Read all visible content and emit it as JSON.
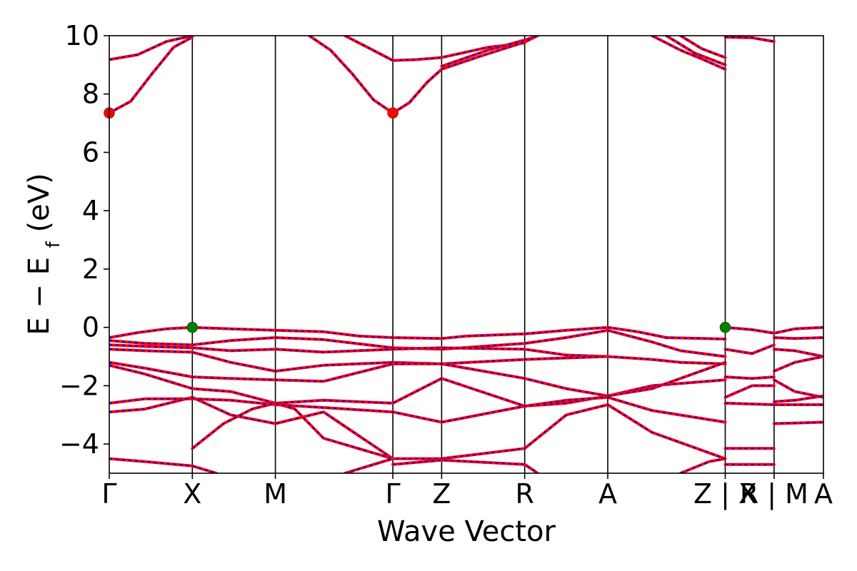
{
  "chart_data": {
    "type": "line",
    "title": "",
    "xlabel": "Wave Vector",
    "ylabel": "E − E_f (eV)",
    "ylim": [
      -5,
      10
    ],
    "yticks": [
      -4,
      -2,
      0,
      2,
      4,
      6,
      8,
      10
    ],
    "ytick_labels": [
      "−4",
      "−2",
      "0",
      "2",
      "4",
      "6",
      "8",
      "10"
    ],
    "xlim": [
      0,
      1
    ],
    "kpoints": [
      {
        "label": "Γ",
        "x": 0.0
      },
      {
        "label": "X",
        "x": 0.1163
      },
      {
        "label": "M",
        "x": 0.2326
      },
      {
        "label": "Γ",
        "x": 0.3971
      },
      {
        "label": "Z",
        "x": 0.4654
      },
      {
        "label": "R",
        "x": 0.5817
      },
      {
        "label": "A",
        "x": 0.698
      },
      {
        "label": "Z | X",
        "x": 0.8625
      },
      {
        "label": "R | M",
        "x": 0.9309
      },
      {
        "label": "A",
        "x": 1.0
      }
    ],
    "line_colors": {
      "spin_up": "#ff0000",
      "spin_down": "#0000ff"
    },
    "markers": {
      "cbm": {
        "color": "#ff0000",
        "points": [
          [
            0.0,
            7.35
          ],
          [
            0.3971,
            7.35
          ]
        ]
      },
      "vbm": {
        "color": "#008000",
        "points": [
          [
            0.1163,
            0.0
          ],
          [
            0.8625,
            0.0
          ]
        ]
      }
    },
    "series": [
      {
        "x": [
          0,
          0.03,
          0.06,
          0.09,
          0.1163
        ],
        "y": [
          7.35,
          7.75,
          8.7,
          9.6,
          9.95
        ]
      },
      {
        "x": [
          0,
          0.04,
          0.08,
          0.1163
        ],
        "y": [
          9.18,
          9.35,
          9.8,
          10.0
        ]
      },
      {
        "x": [
          0.28,
          0.31,
          0.34,
          0.37,
          0.3971,
          0.42,
          0.445,
          0.4654
        ],
        "y": [
          10.0,
          9.5,
          8.7,
          7.8,
          7.35,
          7.7,
          8.4,
          8.85
        ]
      },
      {
        "x": [
          0.3971,
          0.43,
          0.4654,
          0.53,
          0.5817
        ],
        "y": [
          9.15,
          9.18,
          9.25,
          9.6,
          9.75
        ]
      },
      {
        "x": [
          0.33,
          0.3971
        ],
        "y": [
          10.0,
          9.15
        ]
      },
      {
        "x": [
          0.4654,
          0.52,
          0.5817,
          0.6
        ],
        "y": [
          8.85,
          9.3,
          9.78,
          10.0
        ]
      },
      {
        "x": [
          0.4654,
          0.53,
          0.5817,
          0.6
        ],
        "y": [
          8.95,
          9.5,
          9.85,
          10.0
        ]
      },
      {
        "x": [
          0.76,
          0.8,
          0.83,
          0.8625
        ],
        "y": [
          10.0,
          9.5,
          9.2,
          8.85
        ]
      },
      {
        "x": [
          0.78,
          0.82,
          0.8625
        ],
        "y": [
          10.0,
          9.4,
          9.0
        ]
      },
      {
        "x": [
          0.8,
          0.83,
          0.8625
        ],
        "y": [
          10.0,
          9.55,
          9.25
        ]
      },
      {
        "x": [
          0.8625,
          0.9,
          0.9309
        ],
        "y": [
          9.95,
          9.93,
          9.8
        ]
      },
      {
        "x": [
          0,
          0.04,
          0.08,
          0.1163,
          0.17,
          0.2326
        ],
        "y": [
          -0.35,
          -0.18,
          -0.05,
          0.0,
          -0.05,
          -0.1
        ]
      },
      {
        "x": [
          0.2326,
          0.3,
          0.35,
          0.3971,
          0.4654,
          0.5,
          0.5817,
          0.64,
          0.698
        ],
        "y": [
          -0.1,
          -0.15,
          -0.3,
          -0.35,
          -0.38,
          -0.3,
          -0.22,
          -0.1,
          0.0
        ]
      },
      {
        "x": [
          0.698,
          0.74,
          0.78,
          0.8625
        ],
        "y": [
          0.0,
          -0.15,
          -0.35,
          -0.4
        ]
      },
      {
        "x": [
          0.8625,
          0.9,
          0.9309,
          0.96,
          1.0
        ],
        "y": [
          0.0,
          -0.08,
          -0.2,
          -0.05,
          0.0
        ]
      },
      {
        "x": [
          0,
          0.05,
          0.1163,
          0.17,
          0.2326
        ],
        "y": [
          -0.45,
          -0.55,
          -0.6,
          -0.45,
          -0.35
        ]
      },
      {
        "x": [
          0.2326,
          0.3,
          0.3971,
          0.4654,
          0.5817,
          0.64,
          0.698
        ],
        "y": [
          -0.35,
          -0.42,
          -0.7,
          -0.75,
          -0.55,
          -0.35,
          -0.1
        ]
      },
      {
        "x": [
          0.698,
          0.76,
          0.8,
          0.8625
        ],
        "y": [
          -0.1,
          -0.5,
          -0.8,
          -1.0
        ]
      },
      {
        "x": [
          0,
          0.05,
          0.1163,
          0.17,
          0.2326,
          0.3,
          0.3971,
          0.4654,
          0.5817,
          0.64,
          0.698
        ],
        "y": [
          -0.6,
          -0.65,
          -0.7,
          -0.8,
          -0.75,
          -0.85,
          -0.75,
          -0.7,
          -0.75,
          -0.95,
          -1.0
        ]
      },
      {
        "x": [
          0.698,
          0.76,
          0.8,
          0.8625
        ],
        "y": [
          -1.0,
          -1.1,
          -1.2,
          -1.25
        ]
      },
      {
        "x": [
          0,
          0.05,
          0.1163,
          0.17,
          0.2326,
          0.3,
          0.3971,
          0.4654,
          0.5817,
          0.698
        ],
        "y": [
          -0.75,
          -0.8,
          -0.85,
          -1.2,
          -1.5,
          -1.3,
          -1.2,
          -1.25,
          -1.1,
          -1.0
        ]
      },
      {
        "x": [
          0,
          0.05,
          0.1163,
          0.17,
          0.2326,
          0.3,
          0.3971,
          0.4654,
          0.5817,
          0.64,
          0.698,
          0.76,
          0.8625
        ],
        "y": [
          -1.2,
          -1.4,
          -1.7,
          -1.75,
          -1.8,
          -1.85,
          -1.25,
          -1.25,
          -1.75,
          -2.1,
          -2.35,
          -2.0,
          -1.8
        ]
      },
      {
        "x": [
          0,
          0.05,
          0.1163,
          0.17,
          0.2326,
          0.3,
          0.3971,
          0.4654,
          0.5817,
          0.64,
          0.698,
          0.76,
          0.8625
        ],
        "y": [
          -1.3,
          -1.6,
          -2.1,
          -2.2,
          -2.6,
          -2.5,
          -2.6,
          -1.75,
          -2.7,
          -2.6,
          -2.35,
          -2.1,
          -1.2
        ]
      },
      {
        "x": [
          0,
          0.05,
          0.1163,
          0.17,
          0.2326,
          0.3,
          0.3971,
          0.4654,
          0.5817,
          0.64,
          0.698,
          0.76,
          0.8625
        ],
        "y": [
          -2.6,
          -2.45,
          -2.45,
          -2.5,
          -2.65,
          -2.75,
          -2.9,
          -3.25,
          -2.7,
          -2.5,
          -2.4,
          -2.85,
          -3.25
        ]
      },
      {
        "x": [
          0,
          0.05,
          0.1163,
          0.17,
          0.2326,
          0.3,
          0.3971,
          0.4654,
          0.5817,
          0.64,
          0.698,
          0.76,
          0.8625
        ],
        "y": [
          -2.9,
          -2.8,
          -2.4,
          -3.0,
          -3.3,
          -2.9,
          -4.5,
          -4.5,
          -4.15,
          -3.0,
          -2.65,
          -3.6,
          -4.5
        ]
      },
      {
        "x": [
          0,
          0.05,
          0.1163,
          0.15
        ],
        "y": [
          -4.5,
          -4.6,
          -4.75,
          -5.0
        ]
      },
      {
        "x": [
          0.1163,
          0.16,
          0.2,
          0.2326,
          0.26,
          0.3,
          0.3971
        ],
        "y": [
          -4.15,
          -3.3,
          -2.8,
          -2.6,
          -2.8,
          -3.8,
          -4.5
        ]
      },
      {
        "x": [
          0.3971,
          0.4654,
          0.5817,
          0.6
        ],
        "y": [
          -4.7,
          -4.55,
          -4.7,
          -5.0
        ]
      },
      {
        "x": [
          0.33,
          0.3971
        ],
        "y": [
          -5.0,
          -4.5
        ]
      },
      {
        "x": [
          0.8,
          0.84,
          0.8625
        ],
        "y": [
          -5.0,
          -4.6,
          -4.5
        ]
      },
      {
        "x": [
          0.8625,
          0.9,
          0.9309
        ],
        "y": [
          -4.15,
          -4.15,
          -4.15
        ]
      },
      {
        "x": [
          0.8625,
          0.9,
          0.9309
        ],
        "y": [
          -4.7,
          -4.7,
          -4.7
        ]
      },
      {
        "x": [
          0.8625,
          0.9309
        ],
        "y": [
          -2.6,
          -2.65
        ]
      },
      {
        "x": [
          0.8625,
          0.9,
          0.9309
        ],
        "y": [
          -2.4,
          -2.0,
          -2.0
        ]
      },
      {
        "x": [
          0.8625,
          0.9,
          0.9309
        ],
        "y": [
          -1.7,
          -1.75,
          -1.7
        ]
      },
      {
        "x": [
          0.8625,
          0.9,
          0.9309
        ],
        "y": [
          -0.75,
          -0.9,
          -0.6
        ]
      },
      {
        "x": [
          0.9309,
          0.96,
          1.0
        ],
        "y": [
          -0.35,
          -0.38,
          -0.35
        ]
      },
      {
        "x": [
          0.9309,
          0.96,
          1.0
        ],
        "y": [
          -0.75,
          -0.8,
          -1.0
        ]
      },
      {
        "x": [
          0.9309,
          0.96,
          1.0
        ],
        "y": [
          -1.5,
          -1.2,
          -1.0
        ]
      },
      {
        "x": [
          0.9309,
          0.96,
          1.0
        ],
        "y": [
          -1.8,
          -2.2,
          -2.4
        ]
      },
      {
        "x": [
          0.9309,
          0.96,
          1.0
        ],
        "y": [
          -2.55,
          -2.5,
          -2.35
        ]
      },
      {
        "x": [
          0.9309,
          0.96,
          1.0
        ],
        "y": [
          -2.65,
          -2.65,
          -2.65
        ]
      },
      {
        "x": [
          0.9309,
          0.96,
          1.0
        ],
        "y": [
          -3.3,
          -3.28,
          -3.25
        ]
      }
    ]
  }
}
